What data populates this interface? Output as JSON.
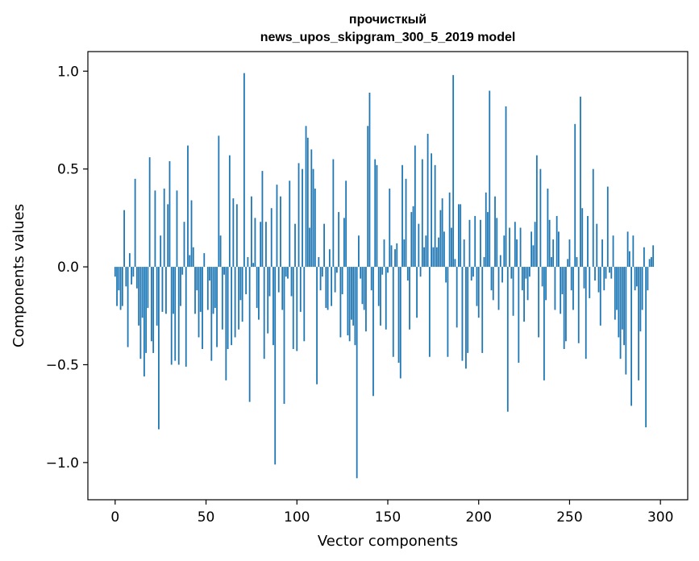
{
  "chart_data": {
    "type": "bar",
    "title_line1": "прочисткый",
    "title_line2": "news_upos_skipgram_300_5_2019 model",
    "xlabel": "Vector components",
    "ylabel": "Components values",
    "xlim": [
      -15,
      315
    ],
    "ylim": [
      -1.19,
      1.1
    ],
    "xticks": [
      0,
      50,
      100,
      150,
      200,
      250,
      300
    ],
    "xtick_labels": [
      "0",
      "50",
      "100",
      "150",
      "200",
      "250",
      "300"
    ],
    "yticks": [
      -1.0,
      -0.5,
      0.0,
      0.5,
      1.0
    ],
    "ytick_labels": [
      "−1.0",
      "−0.5",
      "0.0",
      "0.5",
      "1.0"
    ],
    "bar_color": "#1f77b4",
    "grid": false,
    "x_start": 0,
    "values": [
      -0.05,
      -0.2,
      -0.12,
      -0.22,
      -0.2,
      0.29,
      -0.1,
      -0.41,
      0.07,
      -0.09,
      -0.05,
      0.45,
      -0.11,
      -0.3,
      -0.47,
      -0.26,
      -0.56,
      -0.44,
      -0.21,
      0.56,
      -0.38,
      -0.44,
      0.39,
      -0.3,
      -0.83,
      0.16,
      -0.23,
      0.4,
      -0.24,
      0.32,
      0.54,
      -0.5,
      -0.24,
      -0.48,
      0.39,
      -0.5,
      -0.2,
      -0.04,
      0.23,
      -0.51,
      0.62,
      0.06,
      0.34,
      0.1,
      -0.24,
      -0.12,
      -0.36,
      -0.23,
      -0.42,
      0.07,
      0.0,
      -0.22,
      -0.07,
      -0.48,
      -0.24,
      -0.21,
      -0.41,
      0.67,
      0.16,
      -0.32,
      -0.04,
      -0.58,
      -0.42,
      0.57,
      -0.4,
      0.35,
      -0.36,
      0.32,
      -0.32,
      -0.17,
      -0.28,
      0.99,
      -0.14,
      0.05,
      -0.69,
      0.36,
      0.02,
      0.25,
      -0.21,
      -0.27,
      0.23,
      0.49,
      -0.47,
      0.23,
      -0.34,
      -0.15,
      0.3,
      -0.4,
      -1.01,
      0.42,
      -0.13,
      0.36,
      -0.22,
      -0.7,
      -0.05,
      -0.06,
      0.44,
      -0.15,
      -0.42,
      0.22,
      -0.43,
      0.53,
      -0.23,
      0.5,
      -0.38,
      0.72,
      0.66,
      0.2,
      0.6,
      0.5,
      0.4,
      -0.6,
      0.05,
      -0.12,
      -0.05,
      0.22,
      -0.21,
      -0.22,
      0.09,
      -0.2,
      0.55,
      -0.13,
      -0.03,
      0.28,
      -0.36,
      -0.14,
      0.25,
      0.44,
      -0.35,
      -0.38,
      -0.27,
      -0.3,
      -0.4,
      -1.08,
      0.16,
      -0.06,
      -0.19,
      -0.22,
      -0.33,
      0.72,
      0.89,
      -0.12,
      -0.66,
      0.55,
      0.52,
      -0.2,
      -0.3,
      -0.04,
      0.14,
      -0.32,
      -0.03,
      0.4,
      0.11,
      -0.46,
      0.09,
      0.12,
      -0.49,
      -0.57,
      0.52,
      0.14,
      0.45,
      -0.07,
      -0.32,
      0.28,
      0.31,
      0.62,
      -0.26,
      0.22,
      -0.05,
      0.55,
      0.1,
      0.16,
      0.68,
      -0.46,
      0.58,
      0.1,
      0.52,
      0.1,
      0.15,
      0.29,
      0.35,
      0.18,
      -0.08,
      -0.46,
      0.38,
      0.2,
      0.98,
      0.04,
      -0.31,
      0.32,
      0.32,
      -0.48,
      0.14,
      -0.52,
      -0.44,
      0.24,
      -0.07,
      -0.05,
      0.26,
      -0.2,
      -0.26,
      0.24,
      -0.44,
      0.05,
      0.38,
      0.28,
      0.9,
      -0.12,
      -0.17,
      0.36,
      0.25,
      -0.22,
      0.06,
      -0.08,
      0.16,
      0.82,
      -0.74,
      0.2,
      -0.06,
      -0.25,
      0.23,
      0.14,
      -0.49,
      0.2,
      -0.12,
      -0.28,
      -0.06,
      -0.17,
      -0.05,
      0.18,
      0.11,
      0.23,
      0.57,
      -0.36,
      0.5,
      -0.1,
      -0.58,
      -0.17,
      0.4,
      0.24,
      0.05,
      0.14,
      -0.22,
      0.26,
      0.18,
      -0.24,
      -0.14,
      -0.42,
      -0.38,
      0.04,
      0.14,
      -0.12,
      -0.22,
      0.73,
      0.05,
      -0.39,
      0.87,
      0.3,
      -0.11,
      -0.47,
      0.26,
      -0.16,
      0.0,
      0.5,
      -0.07,
      0.22,
      -0.13,
      -0.3,
      0.14,
      -0.12,
      -0.06,
      0.41,
      -0.03,
      -0.06,
      0.16,
      -0.27,
      -0.22,
      -0.36,
      -0.47,
      -0.32,
      -0.4,
      -0.55,
      0.18,
      0.08,
      -0.71,
      0.16,
      -0.12,
      -0.1,
      -0.58,
      -0.33,
      -0.22,
      0.1,
      -0.82,
      -0.12,
      0.04,
      0.05,
      0.11,
      0.0
    ]
  }
}
